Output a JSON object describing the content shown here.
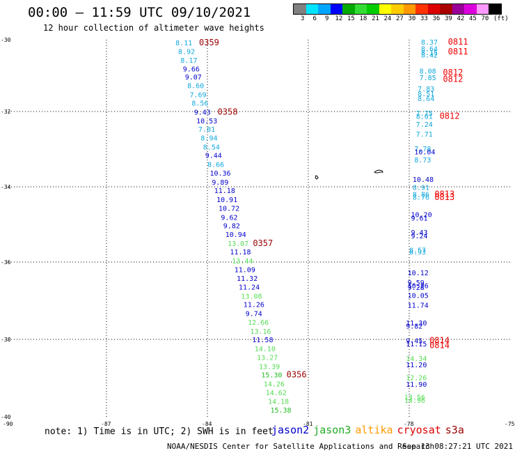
{
  "header": {
    "title": "00:00 – 11:59 UTC 09/10/2021",
    "subtitle": "12 hour collection of altimeter wave heights"
  },
  "legend": {
    "colors": [
      "#808080",
      "#00e5ff",
      "#00a6ff",
      "#0000ff",
      "#00aa00",
      "#33dd33",
      "#00cc00",
      "#ffff00",
      "#ffcc00",
      "#ff9900",
      "#ff3300",
      "#dd0000",
      "#aa0000",
      "#990099",
      "#dd00dd",
      "#ff99ff",
      "#000000"
    ],
    "labels": [
      "3",
      "6",
      "9",
      "12",
      "15",
      "18",
      "21",
      "24",
      "27",
      "30",
      "33",
      "36",
      "39",
      "42",
      "45",
      "70",
      "(ft)"
    ]
  },
  "axes": {
    "lat_ticks": [
      "-30",
      "-32",
      "-34",
      "-36",
      "-38",
      "-40"
    ],
    "lon_ticks": [
      "-90",
      "-87",
      "-84",
      "-81",
      "-78",
      "-75"
    ]
  },
  "note": "note: 1) Time is in UTC; 2) SWH is in feet",
  "satellites": [
    {
      "name": "jason2",
      "color": "#0000cc"
    },
    {
      "name": "jason3",
      "color": "#22aa22"
    },
    {
      "name": "altika",
      "color": "#ff9900"
    },
    {
      "name": "cryosat",
      "color": "#dd0000"
    },
    {
      "name": "s3a",
      "color": "#990000"
    }
  ],
  "footer": {
    "credit": "NOAA/NESDIS Center for Satellite Applications and Research",
    "timestamp": "Sep 13 08:27:21 UTC 2021"
  },
  "track_west": {
    "points": [
      {
        "lat": -30.11,
        "lon": -84.7,
        "v": "8.11"
      },
      {
        "lat": -30.31,
        "lon": -84.62,
        "v": "8.92"
      },
      {
        "lat": -30.52,
        "lon": -84.55,
        "v": "8.17"
      },
      {
        "lat": -30.72,
        "lon": -84.48,
        "v": "9.66"
      },
      {
        "lat": -30.91,
        "lon": -84.42,
        "v": "9.07"
      },
      {
        "lat": -31.11,
        "lon": -84.35,
        "v": "8.60"
      },
      {
        "lat": -31.32,
        "lon": -84.28,
        "v": "7.69"
      },
      {
        "lat": -31.52,
        "lon": -84.22,
        "v": "8.56"
      },
      {
        "lat": -31.73,
        "lon": -84.15,
        "v": "9.43"
      },
      {
        "lat": -31.93,
        "lon": -84.08,
        "v": "10.53"
      },
      {
        "lat": -32.13,
        "lon": -84.02,
        "v": "7.81"
      },
      {
        "lat": -32.33,
        "lon": -83.95,
        "v": "8.94"
      },
      {
        "lat": -32.54,
        "lon": -83.88,
        "v": "8.54"
      },
      {
        "lat": -32.74,
        "lon": -83.82,
        "v": "9.44"
      },
      {
        "lat": -32.95,
        "lon": -83.75,
        "v": "8.66"
      },
      {
        "lat": -33.15,
        "lon": -83.68,
        "v": "10.36"
      },
      {
        "lat": -33.36,
        "lon": -83.62,
        "v": "9.89"
      },
      {
        "lat": -33.56,
        "lon": -83.55,
        "v": "11.18"
      },
      {
        "lat": -33.77,
        "lon": -83.48,
        "v": "10.91"
      },
      {
        "lat": -33.97,
        "lon": -83.42,
        "v": "10.72"
      },
      {
        "lat": -34.18,
        "lon": -83.35,
        "v": "9.62"
      },
      {
        "lat": -34.38,
        "lon": -83.28,
        "v": "9.82"
      },
      {
        "lat": -34.58,
        "lon": -83.22,
        "v": "10.94"
      },
      {
        "lat": -34.79,
        "lon": -83.15,
        "v": "13.07"
      },
      {
        "lat": -34.99,
        "lon": -83.08,
        "v": "11.18"
      },
      {
        "lat": -35.2,
        "lon": -83.02,
        "v": "13.44"
      },
      {
        "lat": -35.4,
        "lon": -82.95,
        "v": "11.09"
      },
      {
        "lat": -35.61,
        "lon": -82.88,
        "v": "11.32"
      },
      {
        "lat": -35.81,
        "lon": -82.82,
        "v": "11.24"
      },
      {
        "lat": -36.02,
        "lon": -82.75,
        "v": "13.08"
      },
      {
        "lat": -36.22,
        "lon": -82.68,
        "v": "11.26"
      },
      {
        "lat": -36.43,
        "lon": -82.62,
        "v": "9.74"
      },
      {
        "lat": -36.63,
        "lon": -82.55,
        "v": "12.66"
      },
      {
        "lat": -36.84,
        "lon": -82.48,
        "v": "13.16"
      },
      {
        "lat": -37.04,
        "lon": -82.42,
        "v": "11.58"
      },
      {
        "lat": -37.25,
        "lon": -82.35,
        "v": "14.10"
      },
      {
        "lat": -37.45,
        "lon": -82.28,
        "v": "13.27"
      },
      {
        "lat": -37.66,
        "lon": -82.22,
        "v": "13.39"
      },
      {
        "lat": -37.86,
        "lon": -82.15,
        "v": "15.30"
      },
      {
        "lat": -38.07,
        "lon": -82.08,
        "v": "14.26"
      },
      {
        "lat": -38.27,
        "lon": -82.02,
        "v": "14.62"
      },
      {
        "lat": -38.48,
        "lon": -81.95,
        "v": "14.18"
      },
      {
        "lat": -38.68,
        "lon": -81.88,
        "v": "15.38"
      }
    ],
    "times": [
      {
        "lat": -30.11,
        "lon": -84.0,
        "t": "0359"
      },
      {
        "lat": -31.73,
        "lon": -83.45,
        "t": "0358"
      },
      {
        "lat": -34.79,
        "lon": -82.4,
        "t": "0357"
      },
      {
        "lat": -37.86,
        "lon": -81.4,
        "t": "0356"
      }
    ]
  },
  "track_east": {
    "points": [
      {
        "lat": -30.1,
        "lon": -77.4,
        "v": "8.37"
      },
      {
        "lat": -30.3,
        "lon": -77.4,
        "v": "8.64"
      },
      {
        "lat": -30.42,
        "lon": -77.4,
        "v": "8.15"
      },
      {
        "lat": -30.5,
        "lon": -77.4,
        "v": "8.42"
      },
      {
        "lat": -31.0,
        "lon": -77.45,
        "v": "8.08"
      },
      {
        "lat": -31.2,
        "lon": -77.45,
        "v": "7.85"
      },
      {
        "lat": -31.55,
        "lon": -77.5,
        "v": "7.83"
      },
      {
        "lat": -31.7,
        "lon": -77.5,
        "v": "8.51"
      },
      {
        "lat": -31.85,
        "lon": -77.5,
        "v": "8.64"
      },
      {
        "lat": -32.3,
        "lon": -77.55,
        "v": "7.75"
      },
      {
        "lat": -32.4,
        "lon": -77.55,
        "v": "8.01"
      },
      {
        "lat": -32.65,
        "lon": -77.55,
        "v": "7.24"
      },
      {
        "lat": -32.95,
        "lon": -77.55,
        "v": "7.71"
      },
      {
        "lat": -33.4,
        "lon": -77.6,
        "v": "7.78"
      },
      {
        "lat": -33.5,
        "lon": -77.6,
        "v": "10.04"
      },
      {
        "lat": -33.75,
        "lon": -77.6,
        "v": "8.73"
      },
      {
        "lat": -34.35,
        "lon": -77.65,
        "v": "10.48"
      },
      {
        "lat": -34.6,
        "lon": -77.65,
        "v": "8.91"
      },
      {
        "lat": -34.82,
        "lon": -77.65,
        "v": "8.86"
      },
      {
        "lat": -34.9,
        "lon": -77.65,
        "v": "8.76"
      },
      {
        "lat": -35.45,
        "lon": -77.7,
        "v": "10.20"
      },
      {
        "lat": -35.55,
        "lon": -77.7,
        "v": "9.61"
      },
      {
        "lat": -36.0,
        "lon": -77.7,
        "v": "9.43"
      },
      {
        "lat": -36.1,
        "lon": -77.7,
        "v": "9.24"
      },
      {
        "lat": -36.55,
        "lon": -77.75,
        "v": "8.57"
      },
      {
        "lat": -36.6,
        "lon": -77.75,
        "v": "8.93"
      },
      {
        "lat": -37.25,
        "lon": -77.8,
        "v": "10.12"
      },
      {
        "lat": -37.55,
        "lon": -77.8,
        "v": "9.59"
      },
      {
        "lat": -37.65,
        "lon": -77.8,
        "v": "10.26"
      },
      {
        "lat": -37.7,
        "lon": -77.8,
        "v": "9.28"
      },
      {
        "lat": -37.95,
        "lon": -77.8,
        "v": "10.05"
      },
      {
        "lat": -38.25,
        "lon": -77.8,
        "v": "11.74"
      },
      {
        "lat": -38.8,
        "lon": -77.85,
        "v": "11.30"
      },
      {
        "lat": -38.9,
        "lon": -77.85,
        "v": "9.82"
      },
      {
        "lat": -39.35,
        "lon": -77.85,
        "v": "9.45"
      },
      {
        "lat": -39.45,
        "lon": -77.85,
        "v": "11.15"
      },
      {
        "lat": -39.9,
        "lon": -77.85,
        "v": "14.34"
      },
      {
        "lat": -40.1,
        "lon": -77.85,
        "v": "11.20"
      },
      {
        "lat": -40.5,
        "lon": -77.85,
        "v": "12.26"
      },
      {
        "lat": -40.7,
        "lon": -77.85,
        "v": "11.90"
      },
      {
        "lat": -41.1,
        "lon": -77.9,
        "v": "13.56"
      },
      {
        "lat": -41.2,
        "lon": -77.9,
        "v": "14.96"
      }
    ],
    "times": [
      {
        "lat": -30.1,
        "lon": -76.6,
        "t": "0811"
      },
      {
        "lat": -30.4,
        "lon": -76.6,
        "t": "0811"
      },
      {
        "lat": -31.05,
        "lon": -76.75,
        "t": "0812"
      },
      {
        "lat": -31.25,
        "lon": -76.75,
        "t": "0812"
      },
      {
        "lat": -32.4,
        "lon": -76.85,
        "t": "0812"
      },
      {
        "lat": -34.82,
        "lon": -77.0,
        "t": "0813"
      },
      {
        "lat": -34.92,
        "lon": -77.0,
        "t": "0813"
      },
      {
        "lat": -39.35,
        "lon": -77.15,
        "t": "0814"
      },
      {
        "lat": -39.5,
        "lon": -77.15,
        "t": "0814"
      }
    ]
  }
}
